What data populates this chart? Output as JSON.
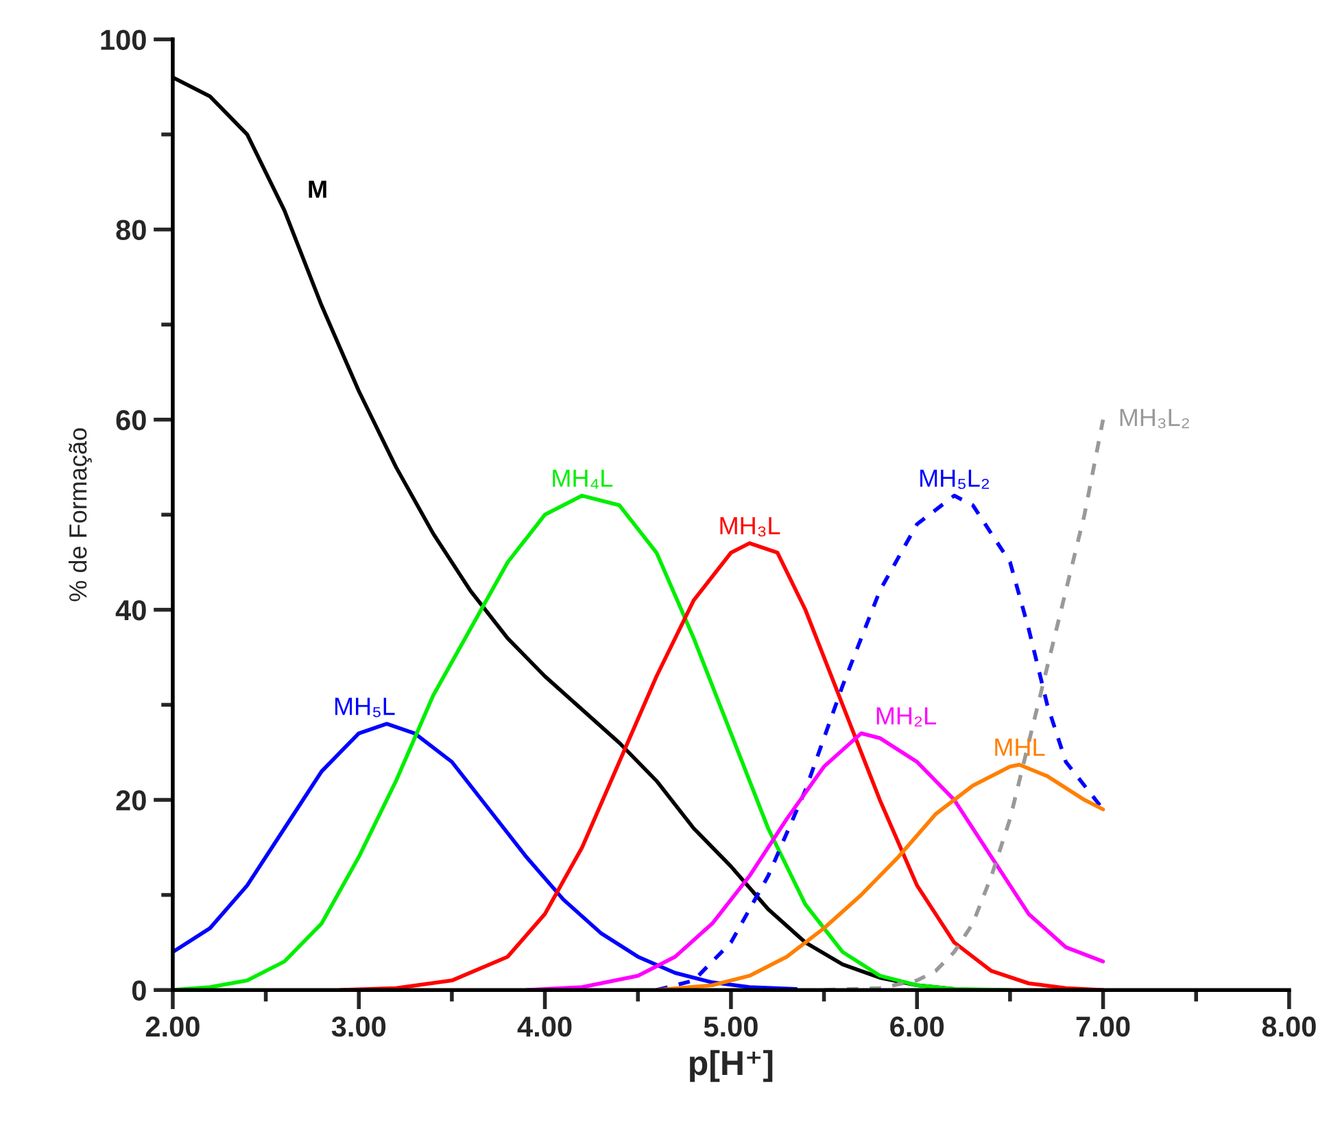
{
  "chart_data": {
    "type": "line",
    "xlabel": "p[H⁺]",
    "ylabel": "% de Formação",
    "xlim": [
      2.0,
      8.0
    ],
    "xticks": [
      {
        "value": 2,
        "label": "2.00"
      },
      {
        "value": 3,
        "label": "3.00"
      },
      {
        "value": 4,
        "label": "4.00"
      },
      {
        "value": 5,
        "label": "5.00"
      },
      {
        "value": 6,
        "label": "6.00"
      },
      {
        "value": 7,
        "label": "7.00"
      },
      {
        "value": 8,
        "label": "8.00"
      }
    ],
    "ylim": [
      0,
      100
    ],
    "yticks": [
      0,
      20,
      40,
      60,
      80,
      100
    ],
    "grid": false,
    "legend": false,
    "marker": "none",
    "series": [
      {
        "name": "M",
        "color": "#000000",
        "line_style": "solid",
        "x": [
          2.0,
          2.2,
          2.4,
          2.6,
          2.8,
          3.0,
          3.2,
          3.4,
          3.6,
          3.8,
          4.0,
          4.2,
          4.4,
          4.6,
          4.8,
          5.0,
          5.2,
          5.4,
          5.6,
          5.8,
          6.0,
          6.2
        ],
        "values": [
          96,
          94,
          90,
          82,
          72,
          63,
          55,
          48,
          42,
          37,
          33,
          29.5,
          26,
          22,
          17,
          13,
          8.5,
          5,
          2.7,
          1.3,
          0.5,
          0.1
        ]
      },
      {
        "name": "MH₅L",
        "color": "#0000ff",
        "line_style": "solid",
        "x": [
          2.0,
          2.2,
          2.4,
          2.6,
          2.8,
          3.0,
          3.15,
          3.3,
          3.5,
          3.7,
          3.9,
          4.1,
          4.3,
          4.5,
          4.7,
          4.9,
          5.1,
          5.35
        ],
        "values": [
          4,
          6.5,
          11,
          17,
          23,
          27,
          28,
          27,
          24,
          19,
          14,
          9.5,
          6,
          3.5,
          1.8,
          0.8,
          0.3,
          0.1
        ]
      },
      {
        "name": "MH₄L",
        "color": "#00ee00",
        "line_style": "solid",
        "x": [
          2.0,
          2.2,
          2.4,
          2.6,
          2.8,
          3.0,
          3.2,
          3.4,
          3.6,
          3.8,
          4.0,
          4.2,
          4.4,
          4.6,
          4.8,
          5.0,
          5.2,
          5.4,
          5.6,
          5.8,
          6.0,
          6.2,
          6.5
        ],
        "values": [
          0,
          0.3,
          1,
          3,
          7,
          14,
          22,
          31,
          38,
          45,
          50,
          52,
          51,
          46,
          37,
          27,
          17,
          9,
          4,
          1.5,
          0.5,
          0.1,
          0
        ]
      },
      {
        "name": "MH₃L",
        "color": "#ff0000",
        "line_style": "solid",
        "x": [
          2.9,
          3.2,
          3.5,
          3.8,
          4.0,
          4.2,
          4.4,
          4.6,
          4.8,
          5.0,
          5.1,
          5.25,
          5.4,
          5.6,
          5.8,
          6.0,
          6.2,
          6.4,
          6.6,
          6.8,
          7.0
        ],
        "values": [
          0,
          0.2,
          1,
          3.5,
          8,
          15,
          24,
          33,
          41,
          46,
          47,
          46,
          40,
          30,
          20,
          11,
          5,
          2,
          0.7,
          0.2,
          0
        ]
      },
      {
        "name": "MH₅L₂",
        "color": "#0000ff",
        "line_style": "dashed",
        "x": [
          4.6,
          4.8,
          5.0,
          5.2,
          5.4,
          5.6,
          5.8,
          6.0,
          6.2,
          6.3,
          6.5,
          6.6,
          6.7,
          6.8,
          7.0
        ],
        "values": [
          0,
          1,
          5,
          12,
          21,
          32,
          42,
          49,
          52,
          51,
          45,
          38,
          30,
          24,
          19
        ]
      },
      {
        "name": "MH₂L",
        "color": "#ff00ff",
        "line_style": "solid",
        "x": [
          3.9,
          4.2,
          4.5,
          4.7,
          4.9,
          5.1,
          5.3,
          5.5,
          5.7,
          5.8,
          6.0,
          6.2,
          6.4,
          6.6,
          6.8,
          7.0
        ],
        "values": [
          0,
          0.3,
          1.5,
          3.5,
          7,
          12,
          18,
          23.5,
          27,
          26.5,
          24,
          20,
          14,
          8,
          4.5,
          3
        ]
      },
      {
        "name": "MHL",
        "color": "#ff7f00",
        "line_style": "solid",
        "x": [
          4.6,
          4.9,
          5.1,
          5.3,
          5.5,
          5.7,
          5.9,
          6.1,
          6.3,
          6.5,
          6.55,
          6.7,
          6.9,
          7.0
        ],
        "values": [
          0,
          0.5,
          1.5,
          3.5,
          6.5,
          10,
          14,
          18.5,
          21.5,
          23.5,
          23.7,
          22.5,
          20,
          19
        ]
      },
      {
        "name": "MH₃L₂",
        "color": "#999999",
        "line_style": "dashed",
        "x": [
          5.5,
          5.8,
          6.0,
          6.1,
          6.2,
          6.3,
          6.4,
          6.5,
          6.6,
          6.7,
          6.8,
          6.9,
          7.0
        ],
        "values": [
          0,
          0.2,
          1,
          2,
          4,
          7,
          12,
          18,
          26,
          34,
          42,
          50,
          60
        ]
      }
    ]
  }
}
